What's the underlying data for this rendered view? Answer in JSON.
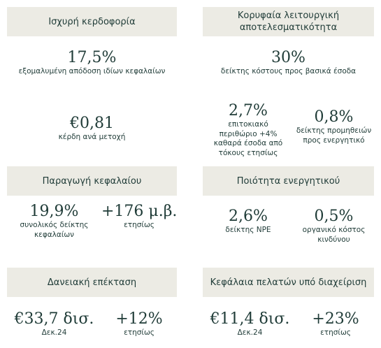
{
  "sections": {
    "profitability": {
      "title": "Ισχυρή κερδοφορία",
      "roe": {
        "value": "17,5%",
        "label": "εξομαλυμένη απόδοση ιδίων κεφαλαίων"
      },
      "eps": {
        "value": "€0,81",
        "label": "κέρδη ανά μετοχή"
      }
    },
    "efficiency": {
      "title": "Κορυφαία λειτουργική αποτελεσματικότητα",
      "cost_income": {
        "value": "30%",
        "label": "δείκτης κόστους προς βασικά έσοδα"
      },
      "nim": {
        "value": "2,7%",
        "label": "επιτοκιακό περιθώριο +4% καθαρά έσοδα από τόκους ετησίως"
      },
      "fees": {
        "value": "0,8%",
        "label": "δείκτης προμηθειών προς ενεργητικό"
      }
    },
    "capital": {
      "title": "Παραγωγή κεφαλαίου",
      "total_capital": {
        "value": "19,9%",
        "label": "συνολικός δείκτης κεφαλαίων"
      },
      "growth": {
        "value": "+176 μ.β.",
        "label": "ετησίως"
      }
    },
    "asset_quality": {
      "title": "Ποιότητα ενεργητικού",
      "npe": {
        "value": "2,6%",
        "label": "δείκτης NPE"
      },
      "cost_of_risk": {
        "value": "0,5%",
        "label": "οργανικό κόστος κινδύνου"
      }
    },
    "lending": {
      "title": "Δανειακή επέκταση",
      "loans": {
        "value": "€33,7 δισ.",
        "label": "Δεκ.24"
      },
      "growth": {
        "value": "+12%",
        "label": "ετησίως"
      }
    },
    "aum": {
      "title": "Κεφάλαια πελατών υπό διαχείριση",
      "funds": {
        "value": "€11,4 δισ.",
        "label": "Δεκ.24"
      },
      "growth": {
        "value": "+23%",
        "label": "ετησίως"
      }
    }
  }
}
